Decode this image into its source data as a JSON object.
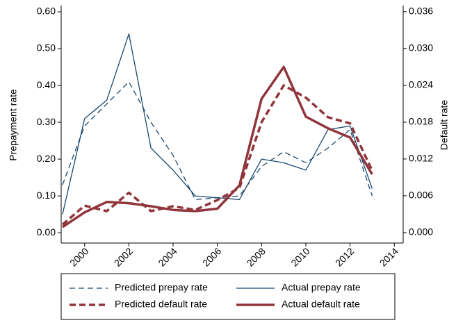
{
  "chart_data": {
    "type": "line",
    "x": [
      1999,
      2000,
      2001,
      2002,
      2003,
      2004,
      2005,
      2006,
      2007,
      2008,
      2009,
      2010,
      2011,
      2012,
      2013
    ],
    "xlim": [
      1998.94,
      2014.4
    ],
    "xticks": [
      2000,
      2002,
      2004,
      2006,
      2008,
      2010,
      2012,
      2014
    ],
    "ylabel": "Prepayment rate",
    "y2label": "Default rate",
    "ylim": [
      -0.028,
      0.617
    ],
    "yticks": [
      {
        "value": 0,
        "label": "0.00"
      },
      {
        "value": 0.1,
        "label": "0.10"
      },
      {
        "value": 0.2,
        "label": "0.20"
      },
      {
        "value": 0.3,
        "label": "0.30"
      },
      {
        "value": 0.4,
        "label": "0.40"
      },
      {
        "value": 0.5,
        "label": "0.50"
      },
      {
        "value": 0.6,
        "label": "0.60"
      }
    ],
    "y2lim": [
      -0.0017,
      0.037
    ],
    "y2ticks": [
      {
        "value": 0,
        "label": "0.000"
      },
      {
        "value": 0.006,
        "label": "0.006"
      },
      {
        "value": 0.012,
        "label": "0.012"
      },
      {
        "value": 0.018,
        "label": "0.018"
      },
      {
        "value": 0.024,
        "label": "0.024"
      },
      {
        "value": 0.03,
        "label": "0.030"
      },
      {
        "value": 0.036,
        "label": "0.036"
      }
    ],
    "legend": "bottom",
    "series": [
      {
        "name": "Predicted prepay rate",
        "color": "#1a476f",
        "dashed": true,
        "axis": "y",
        "values": [
          0.13,
          0.29,
          0.35,
          0.41,
          0.3,
          0.21,
          0.09,
          0.095,
          0.1,
          0.18,
          0.22,
          0.19,
          0.23,
          0.28,
          0.1
        ]
      },
      {
        "name": "Actual prepay rate",
        "color": "#1a476f",
        "dashed": false,
        "axis": "y",
        "values": [
          0.05,
          0.31,
          0.36,
          0.54,
          0.23,
          0.17,
          0.1,
          0.095,
          0.09,
          0.2,
          0.19,
          0.17,
          0.28,
          0.29,
          0.12
        ]
      },
      {
        "name": "Predicted default rate",
        "color": "#90353b",
        "dashed": true,
        "axis": "y2",
        "values": [
          0.0013,
          0.0044,
          0.0035,
          0.0065,
          0.0035,
          0.0043,
          0.0037,
          0.0053,
          0.0073,
          0.018,
          0.024,
          0.022,
          0.0188,
          0.0178,
          0.0101
        ]
      },
      {
        "name": "Actual default rate",
        "color": "#90353b",
        "dashed": false,
        "axis": "y2",
        "values": [
          0.0009,
          0.0033,
          0.005,
          0.0048,
          0.0043,
          0.0037,
          0.0035,
          0.0039,
          0.0077,
          0.0218,
          0.027,
          0.0189,
          0.017,
          0.0155,
          0.0095
        ]
      }
    ]
  }
}
